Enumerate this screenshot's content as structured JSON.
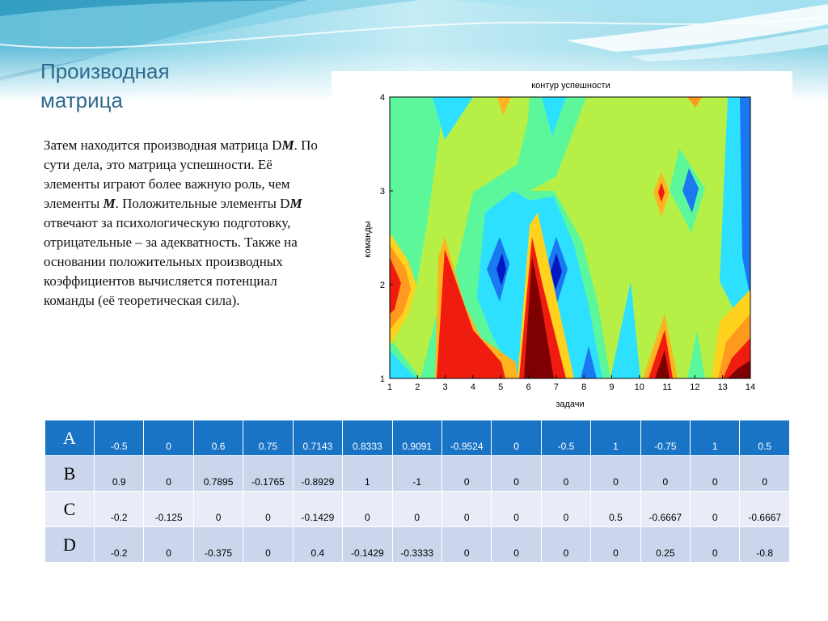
{
  "slide": {
    "title_line1": "Производная",
    "title_line2": "матрица"
  },
  "body": {
    "t1": "Затем находится производная матрица D",
    "t2": "M",
    "t3": ". По сути дела, это матрица успешности. Её элементы играют более важную роль, чем элементы ",
    "t4": "M",
    "t5": ". Положительные элементы D",
    "t6": "M",
    "t7": " отвечают за психологическую подготовку, отрицательные – за адекватность. Также на основании положительных производных коэффициентов вычисляется потенциал команды (её теоретическая сила)."
  },
  "chart_data": {
    "type": "heatmap",
    "title": "контур успешности",
    "xlabel": "задачи",
    "ylabel": "команды",
    "x": [
      1,
      2,
      3,
      4,
      5,
      6,
      7,
      8,
      9,
      10,
      11,
      12,
      13,
      14
    ],
    "y": [
      1,
      2,
      3,
      4
    ],
    "xlim": [
      1,
      14
    ],
    "ylim": [
      1,
      4
    ],
    "x_tick_labels": [
      "1",
      "2",
      "3",
      "4",
      "5",
      "6",
      "7",
      "8",
      "9",
      "10",
      "11",
      "12",
      "13",
      "14"
    ],
    "y_tick_labels": [
      "1",
      "2",
      "3",
      "4"
    ],
    "colormap": "jet",
    "style": "filled contour"
  },
  "table": {
    "rows": [
      {
        "label": "A",
        "values": [
          "-0.5",
          "0",
          "0.6",
          "0.75",
          "0.7143",
          "0.8333",
          "0.9091",
          "-0.9524",
          "0",
          "-0.5",
          "1",
          "-0.75",
          "1",
          "0.5"
        ]
      },
      {
        "label": "B",
        "values": [
          "0.9",
          "0",
          "0.7895",
          "-0.1765",
          "-0.8929",
          "1",
          "-1",
          "0",
          "0",
          "0",
          "0",
          "0",
          "0",
          "0"
        ]
      },
      {
        "label": "C",
        "values": [
          "-0.2",
          "-0.125",
          "0",
          "0",
          "-0.1429",
          "0",
          "0",
          "0",
          "0",
          "0",
          "0.5",
          "-0.6667",
          "0",
          "-0.6667"
        ]
      },
      {
        "label": "D",
        "values": [
          "-0.2",
          "0",
          "-0.375",
          "0",
          "0.4",
          "-0.1429",
          "-0.3333",
          "0",
          "0",
          "0",
          "0",
          "0.25",
          "0",
          "-0.8"
        ]
      }
    ]
  }
}
